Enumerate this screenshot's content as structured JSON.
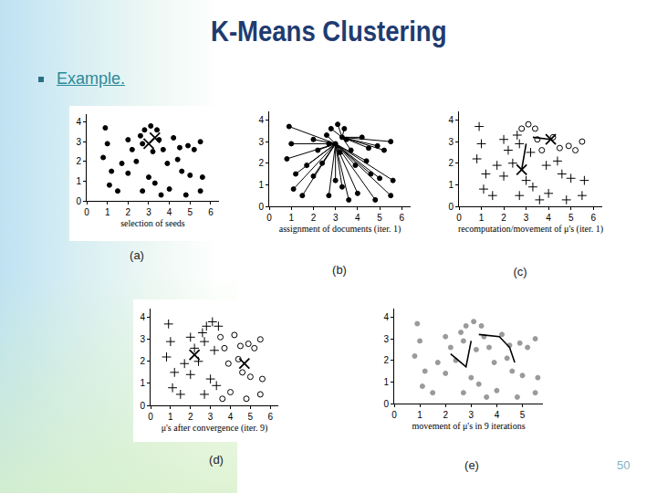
{
  "slide": {
    "title": "K-Means Clustering",
    "bullet": "Example.",
    "page": 50
  },
  "chart_data": [
    {
      "type": "scatter",
      "caption": "(a)",
      "xlabel": "selection of seeds",
      "xlim": [
        0,
        6.4
      ],
      "ylim": [
        0,
        4.4
      ],
      "xticks": [
        0,
        1,
        2,
        3,
        4,
        5,
        6
      ],
      "yticks": [
        0,
        1,
        2,
        3,
        4
      ],
      "grid": false,
      "series": [
        {
          "marker": "dot",
          "color": "#000000",
          "x": [
            0.9,
            1.0,
            0.8,
            1.2,
            1.5,
            1.1,
            2.0,
            2.2,
            2.4,
            2.0,
            1.7,
            2.6,
            2.8,
            3.1,
            3.4,
            3.5,
            2.7,
            3.2,
            3.7,
            4.2,
            4.5,
            4.9,
            5.2,
            5.5,
            4.4,
            3.9,
            4.6,
            5.0,
            5.6,
            3.0,
            3.3,
            2.7,
            4.0,
            4.8,
            5.5,
            3.6
          ],
          "y": [
            3.7,
            2.9,
            2.2,
            1.5,
            0.5,
            0.8,
            3.1,
            2.6,
            2.0,
            1.4,
            1.9,
            3.3,
            3.6,
            3.8,
            3.6,
            3.1,
            2.9,
            2.5,
            2.6,
            3.2,
            2.7,
            2.8,
            2.6,
            3.0,
            2.1,
            1.9,
            1.5,
            1.3,
            1.2,
            1.2,
            0.9,
            0.5,
            0.6,
            0.3,
            0.5,
            0.3
          ]
        },
        {
          "marker": "x",
          "color": "#000000",
          "x": [
            3.0,
            3.3
          ],
          "y": [
            2.9,
            3.2
          ]
        }
      ]
    },
    {
      "type": "scatter",
      "caption": "(b)",
      "xlabel": "assignment of documents (iter. 1)",
      "xlim": [
        0,
        6.4
      ],
      "ylim": [
        0,
        4.4
      ],
      "xticks": [
        0,
        1,
        2,
        3,
        4,
        5,
        6
      ],
      "yticks": [
        0,
        1,
        2,
        3,
        4
      ],
      "grid": false,
      "series": [
        {
          "marker": "dot",
          "color": "#000000",
          "x": [
            0.9,
            1.0,
            0.8,
            1.2,
            1.5,
            1.1,
            2.0,
            2.2,
            2.4,
            2.0,
            1.7,
            2.6,
            2.8,
            3.1,
            3.4,
            3.5,
            2.7,
            3.2,
            3.7,
            4.2,
            4.5,
            4.9,
            5.2,
            5.5,
            4.4,
            3.9,
            4.6,
            5.0,
            5.6,
            3.0,
            3.3,
            2.7,
            4.0,
            4.8,
            5.5,
            3.6
          ],
          "y": [
            3.7,
            2.9,
            2.2,
            1.5,
            0.5,
            0.8,
            3.1,
            2.6,
            2.0,
            1.4,
            1.9,
            3.3,
            3.6,
            3.8,
            3.6,
            3.1,
            2.9,
            2.5,
            2.6,
            3.2,
            2.7,
            2.8,
            2.6,
            3.0,
            2.1,
            1.9,
            1.5,
            1.3,
            1.2,
            1.2,
            0.9,
            0.5,
            0.6,
            0.3,
            0.5,
            0.3
          ]
        },
        {
          "marker": "dot",
          "color": "#000000",
          "x": [
            3.0,
            3.3
          ],
          "y": [
            2.9,
            3.2
          ]
        }
      ],
      "links": {
        "from": 0,
        "to": 1,
        "color": "#000000",
        "targets": [
          0,
          0,
          0,
          0,
          0,
          0,
          0,
          0,
          0,
          0,
          0,
          0,
          1,
          1,
          1,
          1,
          0,
          0,
          1,
          1,
          1,
          1,
          1,
          1,
          0,
          0,
          0,
          0,
          0,
          0,
          0,
          0,
          0,
          0,
          0,
          0
        ]
      }
    },
    {
      "type": "scatter",
      "caption": "(c)",
      "xlabel": "recomputation/movement of μ's (iter. 1)",
      "xlim": [
        0,
        6.4
      ],
      "ylim": [
        0,
        4.4
      ],
      "xticks": [
        0,
        1,
        2,
        3,
        4,
        5,
        6
      ],
      "yticks": [
        0,
        1,
        2,
        3,
        4
      ],
      "grid": false,
      "series": [
        {
          "marker": "plus",
          "color": "#000000",
          "x": [
            0.9,
            1.0,
            0.8,
            1.2,
            1.5,
            1.1,
            2.0,
            2.2,
            2.4,
            2.0,
            1.7,
            2.6,
            2.7,
            3.2,
            4.4,
            3.9,
            4.6,
            5.0,
            5.6,
            3.0,
            3.3,
            2.7,
            4.0,
            4.8,
            5.5,
            3.6
          ],
          "y": [
            3.7,
            2.9,
            2.2,
            1.5,
            0.5,
            0.8,
            3.1,
            2.6,
            2.0,
            1.4,
            1.9,
            3.3,
            2.9,
            2.5,
            2.1,
            1.9,
            1.5,
            1.3,
            1.2,
            1.2,
            0.9,
            0.5,
            0.6,
            0.3,
            0.5,
            0.3
          ]
        },
        {
          "marker": "ring",
          "color": "#000000",
          "x": [
            2.8,
            3.1,
            3.4,
            3.5,
            3.7,
            4.2,
            4.5,
            4.9,
            5.2,
            5.5
          ],
          "y": [
            3.6,
            3.8,
            3.6,
            3.1,
            2.6,
            3.2,
            2.7,
            2.8,
            2.6,
            3.0
          ]
        },
        {
          "type": "line",
          "color": "#000000",
          "x": [
            3.0,
            2.8
          ],
          "y": [
            2.9,
            1.7
          ]
        },
        {
          "type": "line",
          "color": "#000000",
          "x": [
            3.3,
            4.1
          ],
          "y": [
            3.2,
            3.1
          ]
        },
        {
          "marker": "x",
          "color": "#000000",
          "x": [
            2.8,
            4.1
          ],
          "y": [
            1.7,
            3.1
          ]
        }
      ]
    },
    {
      "type": "scatter",
      "caption": "(d)",
      "xlabel": "μ's after convergence (iter. 9)",
      "xlim": [
        0,
        6.4
      ],
      "ylim": [
        0,
        4.4
      ],
      "xticks": [
        0,
        1,
        2,
        3,
        4,
        5,
        6
      ],
      "yticks": [
        0,
        1,
        2,
        3,
        4
      ],
      "grid": false,
      "series": [
        {
          "marker": "plus",
          "color": "#000000",
          "x": [
            0.9,
            1.0,
            0.8,
            1.2,
            1.5,
            1.1,
            2.0,
            2.2,
            2.4,
            2.0,
            1.7,
            2.6,
            2.8,
            3.1,
            3.4,
            2.7,
            3.2,
            3.0,
            3.3,
            2.7
          ],
          "y": [
            3.7,
            2.9,
            2.2,
            1.5,
            0.5,
            0.8,
            3.1,
            2.6,
            2.0,
            1.4,
            1.9,
            3.3,
            3.6,
            3.8,
            3.6,
            2.9,
            2.5,
            1.2,
            0.9,
            0.5
          ]
        },
        {
          "marker": "ring",
          "color": "#000000",
          "x": [
            3.5,
            3.7,
            4.2,
            4.5,
            4.9,
            5.2,
            5.5,
            4.4,
            3.9,
            4.6,
            5.0,
            5.6,
            4.0,
            4.8,
            5.5,
            3.6
          ],
          "y": [
            3.1,
            2.6,
            3.2,
            2.7,
            2.8,
            2.6,
            3.0,
            2.1,
            1.9,
            1.5,
            1.3,
            1.2,
            0.6,
            0.3,
            0.5,
            0.3
          ]
        },
        {
          "marker": "x",
          "color": "#000000",
          "x": [
            2.2,
            4.7
          ],
          "y": [
            2.3,
            1.9
          ]
        }
      ]
    },
    {
      "type": "scatter",
      "caption": "(e)",
      "xlabel": "movement of μ's in 9 iterations",
      "xlim": [
        0,
        5.8
      ],
      "ylim": [
        0,
        4.4
      ],
      "xticks": [
        0,
        1,
        2,
        3,
        4,
        5
      ],
      "yticks": [
        0,
        1,
        2,
        3,
        4
      ],
      "grid": false,
      "series": [
        {
          "marker": "dot",
          "color": "#9a9a9a",
          "x": [
            0.9,
            1.0,
            0.8,
            1.2,
            1.5,
            1.1,
            2.0,
            2.2,
            2.4,
            2.0,
            1.7,
            2.6,
            2.8,
            3.1,
            3.4,
            3.5,
            2.7,
            3.2,
            3.7,
            4.2,
            4.5,
            4.9,
            5.2,
            5.5,
            4.4,
            3.9,
            4.6,
            5.0,
            5.6,
            3.0,
            3.3,
            2.7,
            4.0,
            4.8,
            5.5,
            3.6
          ],
          "y": [
            3.7,
            2.9,
            2.2,
            1.5,
            0.5,
            0.8,
            3.1,
            2.6,
            2.0,
            1.4,
            1.9,
            3.3,
            3.6,
            3.8,
            3.6,
            3.1,
            2.9,
            2.5,
            2.6,
            3.2,
            2.7,
            2.8,
            2.6,
            3.0,
            2.1,
            1.9,
            1.5,
            1.3,
            1.2,
            1.2,
            0.9,
            0.5,
            0.6,
            0.3,
            0.5,
            0.3
          ]
        },
        {
          "type": "line",
          "color": "#000000",
          "x": [
            3.0,
            2.8,
            2.5,
            2.3,
            2.2
          ],
          "y": [
            2.9,
            1.7,
            2.0,
            2.2,
            2.3
          ]
        },
        {
          "type": "line",
          "color": "#000000",
          "x": [
            3.3,
            4.1,
            4.5,
            4.6,
            4.7
          ],
          "y": [
            3.2,
            3.1,
            2.6,
            2.2,
            1.9
          ]
        }
      ]
    }
  ]
}
